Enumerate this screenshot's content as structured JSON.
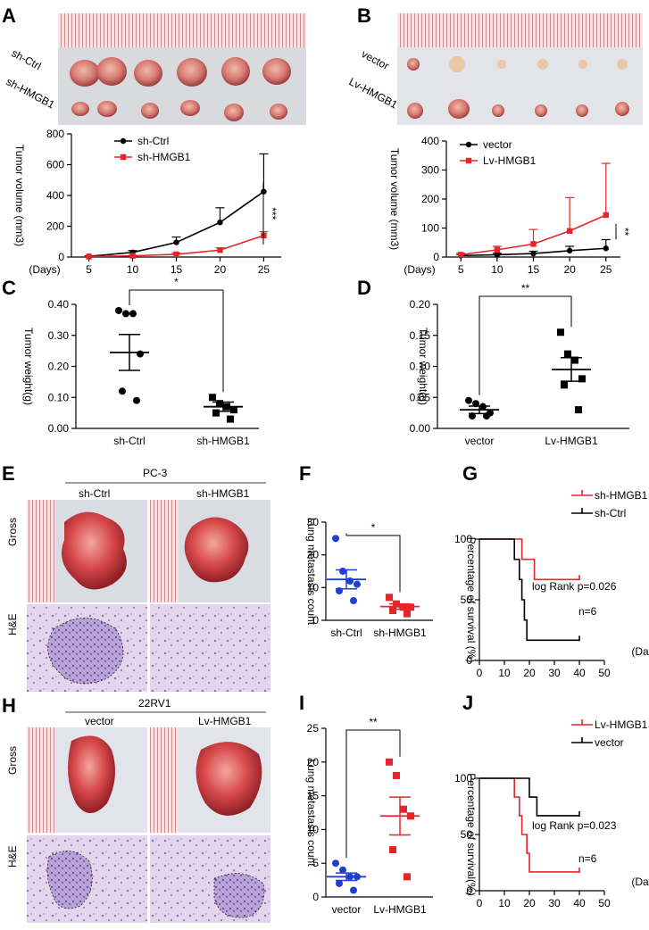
{
  "panel_letters": {
    "a": "A",
    "b": "B",
    "c": "C",
    "d": "D",
    "e": "E",
    "f": "F",
    "g": "G",
    "h": "H",
    "i": "I",
    "j": "J"
  },
  "photo_labels": {
    "a_top": "sh-Ctrl",
    "a_bottom": "sh-HMGB1",
    "b_top": "vector",
    "b_bottom": "Lv-HMGB1",
    "e_group": "PC-3",
    "e_left": "sh-Ctrl",
    "e_right": "sh-HMGB1",
    "h_group": "22RV1",
    "h_left": "vector",
    "h_right": "Lv-HMGB1",
    "gross": "Gross",
    "he": "H&E"
  },
  "colors": {
    "black": "#000000",
    "red": "#e5252a",
    "blue": "#1f3fd1",
    "ruler": "#f2d9da"
  },
  "chart_data": [
    {
      "id": "A",
      "type": "line",
      "title": "",
      "xlabel": "(Days)",
      "ylabel": "Tumor volume (mm3)",
      "x": [
        5,
        10,
        15,
        20,
        25
      ],
      "xticks": [
        "5",
        "10",
        "15",
        "20",
        "25"
      ],
      "ylim": [
        0,
        800
      ],
      "yticks": [
        "0",
        "200",
        "400",
        "600",
        "800"
      ],
      "series": [
        {
          "name": "sh-Ctrl",
          "color": "#000000",
          "values": [
            5,
            30,
            95,
            225,
            425
          ],
          "err": [
            3,
            12,
            35,
            95,
            245
          ]
        },
        {
          "name": "sh-HMGB1",
          "color": "#e5252a",
          "values": [
            3,
            8,
            18,
            45,
            140
          ],
          "err": [
            2,
            4,
            8,
            15,
            25
          ]
        }
      ],
      "significance": "***"
    },
    {
      "id": "B",
      "type": "line",
      "title": "",
      "xlabel": "(Days)",
      "ylabel": "Tumor volume (mm3)",
      "x": [
        5,
        10,
        15,
        20,
        25
      ],
      "xticks": [
        "5",
        "10",
        "15",
        "20",
        "25"
      ],
      "ylim": [
        0,
        400
      ],
      "yticks": [
        "0",
        "100",
        "200",
        "300",
        "400"
      ],
      "series": [
        {
          "name": "vector",
          "color": "#000000",
          "values": [
            5,
            8,
            12,
            22,
            30
          ],
          "err": [
            3,
            5,
            8,
            15,
            30
          ]
        },
        {
          "name": "Lv-HMGB1",
          "color": "#e5252a",
          "values": [
            8,
            25,
            45,
            90,
            145
          ],
          "err": [
            5,
            12,
            50,
            115,
            178
          ]
        }
      ],
      "significance": "**"
    },
    {
      "id": "C",
      "type": "scatter",
      "ylabel": "Tumor weight(g)",
      "categories": [
        "sh-Ctrl",
        "sh-HMGB1"
      ],
      "ylim": [
        0,
        0.4
      ],
      "yticks": [
        "0.00",
        "0.10",
        "0.20",
        "0.30",
        "0.40"
      ],
      "groups": [
        {
          "name": "sh-Ctrl",
          "color": "#000000",
          "marker": "circle",
          "points": [
            0.38,
            0.37,
            0.37,
            0.24,
            0.12,
            0.09
          ],
          "mean": 0.245,
          "sem": 0.058
        },
        {
          "name": "sh-HMGB1",
          "color": "#000000",
          "marker": "square",
          "points": [
            0.1,
            0.08,
            0.07,
            0.06,
            0.05,
            0.03
          ],
          "mean": 0.07,
          "sem": 0.015
        }
      ],
      "significance": "*"
    },
    {
      "id": "D",
      "type": "scatter",
      "ylabel": "Tumor weight(g)",
      "categories": [
        "vector",
        "Lv-HMGB1"
      ],
      "ylim": [
        0,
        0.2
      ],
      "yticks": [
        "0.00",
        "0.05",
        "0.10",
        "0.15",
        "0.20"
      ],
      "groups": [
        {
          "name": "vector",
          "color": "#000000",
          "marker": "circle",
          "points": [
            0.045,
            0.04,
            0.035,
            0.025,
            0.02,
            0.02
          ],
          "mean": 0.03,
          "sem": 0.006
        },
        {
          "name": "Lv-HMGB1",
          "color": "#000000",
          "marker": "square",
          "points": [
            0.155,
            0.12,
            0.11,
            0.08,
            0.07,
            0.03
          ],
          "mean": 0.095,
          "sem": 0.019
        }
      ],
      "significance": "**"
    },
    {
      "id": "F",
      "type": "scatter",
      "ylabel": "Lung metastasis count",
      "categories": [
        "sh-Ctrl",
        "sh-HMGB1"
      ],
      "ylim": [
        0,
        30
      ],
      "yticks": [
        "0",
        "10",
        "20",
        "30"
      ],
      "groups": [
        {
          "name": "sh-Ctrl",
          "color": "#1f3fd1",
          "marker": "circle",
          "points": [
            25,
            15,
            12,
            11,
            9,
            6
          ],
          "mean": 12.5,
          "sem": 2.9
        },
        {
          "name": "sh-HMGB1",
          "color": "#e5252a",
          "marker": "square",
          "points": [
            7,
            5,
            4,
            4,
            3,
            2
          ],
          "mean": 4.2,
          "sem": 0.8
        }
      ],
      "significance": "*"
    },
    {
      "id": "I",
      "type": "scatter",
      "ylabel": "Lung metastasis count",
      "categories": [
        "vector",
        "Lv-HMGB1"
      ],
      "ylim": [
        0,
        25
      ],
      "yticks": [
        "0",
        "5",
        "10",
        "15",
        "20",
        "25"
      ],
      "groups": [
        {
          "name": "vector",
          "color": "#1f3fd1",
          "marker": "circle",
          "points": [
            5,
            4,
            3,
            3,
            2,
            1
          ],
          "mean": 3,
          "sem": 0.55
        },
        {
          "name": "Lv-HMGB1",
          "color": "#e5252a",
          "marker": "square",
          "points": [
            20,
            18,
            13,
            12,
            7,
            3
          ],
          "mean": 12,
          "sem": 2.8
        }
      ],
      "significance": "**"
    },
    {
      "id": "G",
      "type": "line",
      "subtype": "survival",
      "xlabel": "(Days)",
      "ylabel": "Percentage of survival (%)",
      "xlim": [
        0,
        50
      ],
      "xticks": [
        "0",
        "10",
        "20",
        "30",
        "40",
        "50"
      ],
      "ylim": [
        0,
        100
      ],
      "yticks": [
        "0",
        "50",
        "100"
      ],
      "series": [
        {
          "name": "sh-HMGB1",
          "color": "#e5252a",
          "steps": [
            [
              0,
              100
            ],
            [
              17,
              100
            ],
            [
              17,
              83.3
            ],
            [
              22,
              83.3
            ],
            [
              22,
              66.7
            ],
            [
              40,
              66.7
            ]
          ]
        },
        {
          "name": "sh-Ctrl",
          "color": "#000000",
          "steps": [
            [
              0,
              100
            ],
            [
              14,
              100
            ],
            [
              14,
              83.3
            ],
            [
              16,
              83.3
            ],
            [
              16,
              66.7
            ],
            [
              17,
              66.7
            ],
            [
              17,
              50
            ],
            [
              18,
              50
            ],
            [
              18,
              33.3
            ],
            [
              19,
              33.3
            ],
            [
              19,
              16.7
            ],
            [
              40,
              16.7
            ]
          ]
        }
      ],
      "annotation": "log Rank p=0.026",
      "n": "n=6"
    },
    {
      "id": "J",
      "type": "line",
      "subtype": "survival",
      "xlabel": "(Days)",
      "ylabel": "Percentage of survival(%)",
      "xlim": [
        0,
        50
      ],
      "xticks": [
        "0",
        "10",
        "20",
        "30",
        "40",
        "50"
      ],
      "ylim": [
        0,
        100
      ],
      "yticks": [
        "0",
        "50",
        "100"
      ],
      "series": [
        {
          "name": "Lv-HMGB1",
          "color": "#e5252a",
          "steps": [
            [
              0,
              100
            ],
            [
              14,
              100
            ],
            [
              14,
              83.3
            ],
            [
              16,
              83.3
            ],
            [
              16,
              66.7
            ],
            [
              17,
              66.7
            ],
            [
              17,
              50
            ],
            [
              19,
              50
            ],
            [
              19,
              33.3
            ],
            [
              20,
              33.3
            ],
            [
              20,
              16.7
            ],
            [
              40,
              16.7
            ]
          ]
        },
        {
          "name": "vector",
          "color": "#000000",
          "steps": [
            [
              0,
              100
            ],
            [
              20,
              100
            ],
            [
              20,
              83.3
            ],
            [
              23,
              83.3
            ],
            [
              23,
              66.7
            ],
            [
              40,
              66.7
            ]
          ]
        }
      ],
      "annotation": "log Rank p=0.023",
      "n": "n=6"
    }
  ]
}
